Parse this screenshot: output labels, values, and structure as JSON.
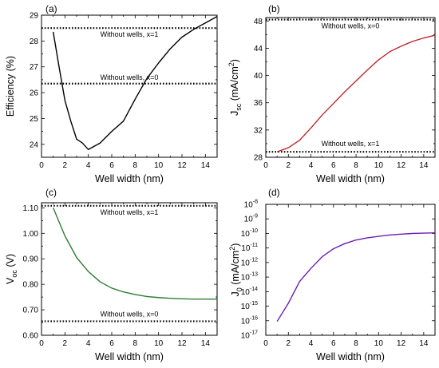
{
  "chart_data": [
    {
      "type": "line",
      "panel": "(a)",
      "xlabel": "Well width (nm)",
      "ylabel": "Efficiency (%)",
      "xlim": [
        0,
        15
      ],
      "ylim": [
        23.5,
        29
      ],
      "x_ticks": [
        "0",
        "2",
        "4",
        "6",
        "8",
        "10",
        "12",
        "14"
      ],
      "y_ticks": [
        "24",
        "25",
        "26",
        "27",
        "28",
        "29"
      ],
      "series": [
        {
          "color": "#000000",
          "x": [
            1,
            1.5,
            2,
            2.5,
            3,
            3.5,
            4,
            5,
            6,
            7,
            8,
            9,
            10,
            11,
            12,
            13,
            14,
            15
          ],
          "y": [
            28.35,
            27.0,
            25.7,
            24.9,
            24.2,
            24.05,
            23.8,
            24.05,
            24.5,
            24.9,
            25.75,
            26.55,
            27.15,
            27.7,
            28.15,
            28.45,
            28.7,
            28.95
          ]
        }
      ],
      "reference_lines": [
        {
          "y": 28.5,
          "label": "Without wells, x=1"
        },
        {
          "y": 26.35,
          "label": "Without wells, x=0"
        }
      ]
    },
    {
      "type": "line",
      "panel": "(b)",
      "xlabel": "Well width (nm)",
      "ylabel": "J",
      "ylabel_sub": "sc",
      "ylabel_rest": " (mA/cm",
      "ylabel_sup": "2",
      "ylabel_end": ")",
      "xlim": [
        0,
        15
      ],
      "ylim": [
        28,
        48.5
      ],
      "x_ticks": [
        "0",
        "2",
        "4",
        "6",
        "8",
        "10",
        "12",
        "14"
      ],
      "y_ticks": [
        "28",
        "32",
        "36",
        "40",
        "44",
        "48"
      ],
      "series": [
        {
          "color": "#c0282e",
          "x": [
            1,
            2,
            3,
            4,
            5,
            6,
            7,
            8,
            9,
            10,
            11,
            12,
            13,
            14,
            15
          ],
          "y": [
            28.8,
            29.4,
            30.5,
            32.3,
            34.2,
            35.9,
            37.6,
            39.2,
            40.8,
            42.3,
            43.5,
            44.3,
            45.0,
            45.5,
            45.9
          ]
        }
      ],
      "reference_lines": [
        {
          "y": 48.2,
          "label": "Without wells, x=0"
        },
        {
          "y": 28.8,
          "label": "Without wells, x=1"
        }
      ]
    },
    {
      "type": "line",
      "panel": "(c)",
      "xlabel": "Well width (nm)",
      "ylabel": "V",
      "ylabel_sub": "oc",
      "ylabel_rest": " (V)",
      "xlim": [
        0,
        15
      ],
      "ylim": [
        0.6,
        1.12
      ],
      "x_ticks": [
        "0",
        "2",
        "4",
        "6",
        "8",
        "10",
        "12",
        "14"
      ],
      "y_ticks": [
        "0.60",
        "0.70",
        "0.80",
        "0.90",
        "1.00",
        "1.10"
      ],
      "series": [
        {
          "color": "#2e7d32",
          "x": [
            1,
            2,
            3,
            4,
            5,
            6,
            7,
            8,
            9,
            10,
            11,
            12,
            13,
            14,
            15
          ],
          "y": [
            1.1,
            0.99,
            0.905,
            0.85,
            0.81,
            0.785,
            0.77,
            0.76,
            0.752,
            0.748,
            0.745,
            0.743,
            0.742,
            0.742,
            0.742
          ]
        }
      ],
      "reference_lines": [
        {
          "y": 1.108,
          "label": "Without wells, x=1"
        },
        {
          "y": 0.655,
          "label": "Without wells, x=0"
        }
      ]
    },
    {
      "type": "line",
      "panel": "(d)",
      "xlabel": "Well width (nm)",
      "ylabel": "J",
      "ylabel_sub": "0",
      "ylabel_rest": " (mA/cm",
      "ylabel_sup": "2",
      "ylabel_end": ")",
      "yscale": "log",
      "xlim": [
        0,
        15
      ],
      "ylim_exp": [
        -17,
        -8
      ],
      "x_ticks": [
        "0",
        "2",
        "4",
        "6",
        "8",
        "10",
        "12",
        "14"
      ],
      "y_ticks": [
        {
          "base": "10",
          "exp": "-17"
        },
        {
          "base": "10",
          "exp": "-16"
        },
        {
          "base": "10",
          "exp": "-15"
        },
        {
          "base": "10",
          "exp": "-14"
        },
        {
          "base": "10",
          "exp": "-13"
        },
        {
          "base": "10",
          "exp": "-12"
        },
        {
          "base": "10",
          "exp": "-11"
        },
        {
          "base": "10",
          "exp": "-10"
        },
        {
          "base": "10",
          "exp": "-9"
        },
        {
          "base": "10",
          "exp": "-8"
        }
      ],
      "series": [
        {
          "color": "#6a1fb0",
          "x": [
            1,
            2,
            3,
            4,
            5,
            6,
            7,
            8,
            9,
            10,
            11,
            12,
            13,
            14,
            15
          ],
          "y_exp": [
            -16.05,
            -14.8,
            -13.3,
            -12.4,
            -11.6,
            -11.05,
            -10.7,
            -10.45,
            -10.3,
            -10.2,
            -10.1,
            -10.05,
            -10.0,
            -9.98,
            -9.96
          ]
        }
      ],
      "reference_lines": []
    }
  ]
}
